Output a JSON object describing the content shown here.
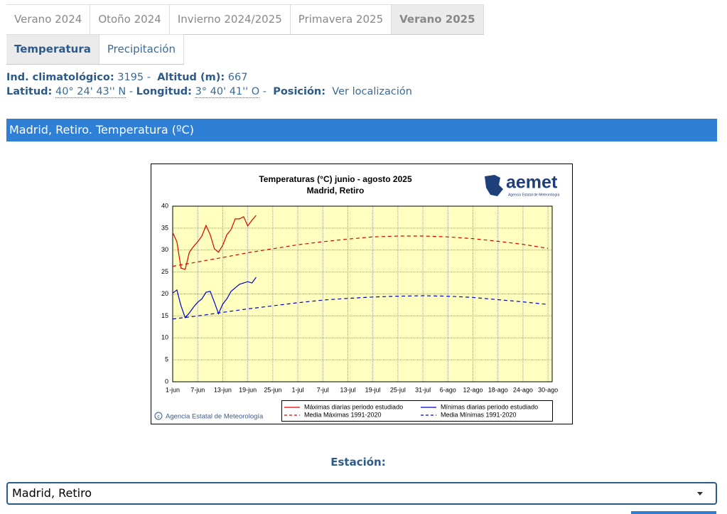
{
  "tabs": {
    "seasons": [
      "Verano 2024",
      "Otoño 2024",
      "Invierno 2024/2025",
      "Primavera 2025",
      "Verano 2025"
    ],
    "variables": [
      "Temperatura",
      "Precipitación"
    ]
  },
  "info": {
    "separator": "-",
    "ind_label": "Ind. climatológico:",
    "ind_value": "3195",
    "alt_label": "Altitud (m):",
    "alt_value": "667",
    "lat_label": "Latitud:",
    "lat_value": "40° 24' 43'' N",
    "lon_label": "Longitud:",
    "lon_value": "3° 40' 41'' O",
    "pos_label": "Posición:",
    "pos_link": "Ver localización"
  },
  "section_title": "Madrid, Retiro. Temperatura (ºC)",
  "chart_data": {
    "type": "line",
    "title": "Temperaturas (°C) junio - agosto 2025",
    "subtitle": "Madrid, Retiro",
    "logo": "aemet",
    "logo_subtitle": "Agencia Estatal de Meteorología",
    "copyright": "Agencia Estatal de Meteorología",
    "grid": true,
    "background": "#ffffc0",
    "xlim": [
      "1-jun",
      "31-ago"
    ],
    "ylim": [
      0,
      40
    ],
    "yticks": [
      0,
      5,
      10,
      15,
      20,
      25,
      30,
      35,
      40
    ],
    "xticks": [
      "1-jun",
      "7-jun",
      "13-jun",
      "19-jun",
      "25-jun",
      "1-jul",
      "7-jul",
      "13-jul",
      "19-jul",
      "25-jul",
      "31-jul",
      "6-ago",
      "12-ago",
      "18-ago",
      "24-ago",
      "30-ago"
    ],
    "series": [
      {
        "name": "Máximas diarias periodo estudiado",
        "color": "#e00000",
        "dashed": false,
        "x": [
          "1-jun",
          "2-jun",
          "3-jun",
          "4-jun",
          "5-jun",
          "6-jun",
          "7-jun",
          "8-jun",
          "9-jun",
          "10-jun",
          "11-jun",
          "12-jun",
          "13-jun",
          "14-jun",
          "15-jun",
          "16-jun",
          "17-jun",
          "18-jun",
          "19-jun",
          "20-jun",
          "21-jun"
        ],
        "values": [
          34.0,
          31.9,
          25.9,
          25.6,
          29.5,
          30.8,
          31.9,
          33.2,
          35.6,
          33.5,
          30.3,
          29.5,
          31.1,
          33.5,
          34.7,
          37.1,
          37.1,
          37.6,
          35.5,
          36.8,
          37.9
        ]
      },
      {
        "name": "Mínimas diarias periodo estudiado",
        "color": "#0000d0",
        "dashed": false,
        "x": [
          "1-jun",
          "2-jun",
          "3-jun",
          "4-jun",
          "5-jun",
          "6-jun",
          "7-jun",
          "8-jun",
          "9-jun",
          "10-jun",
          "11-jun",
          "12-jun",
          "13-jun",
          "14-jun",
          "15-jun",
          "16-jun",
          "17-jun",
          "18-jun",
          "19-jun",
          "20-jun",
          "21-jun"
        ],
        "values": [
          20.2,
          20.9,
          17.3,
          14.6,
          15.7,
          17.0,
          18.1,
          18.9,
          20.4,
          20.6,
          18.1,
          15.5,
          17.7,
          18.9,
          20.6,
          21.4,
          22.2,
          22.5,
          22.8,
          22.5,
          23.8
        ]
      },
      {
        "name": "Media Máximas 1991-2020",
        "color": "#e00000",
        "dashed": true,
        "x": [
          "1-jun",
          "7-jun",
          "13-jun",
          "19-jun",
          "25-jun",
          "1-jul",
          "7-jul",
          "13-jul",
          "19-jul",
          "25-jul",
          "31-jul",
          "6-ago",
          "12-ago",
          "18-ago",
          "24-ago",
          "30-ago"
        ],
        "values": [
          26.3,
          27.3,
          28.3,
          29.4,
          30.3,
          31.2,
          31.9,
          32.5,
          33.0,
          33.2,
          33.2,
          33.0,
          32.6,
          32.0,
          31.3,
          30.4
        ]
      },
      {
        "name": "Media Mínimas 1991-2020",
        "color": "#0000d0",
        "dashed": true,
        "x": [
          "1-jun",
          "7-jun",
          "13-jun",
          "19-jun",
          "25-jun",
          "1-jul",
          "7-jul",
          "13-jul",
          "19-jul",
          "25-jul",
          "31-jul",
          "6-ago",
          "12-ago",
          "18-ago",
          "24-ago",
          "30-ago"
        ],
        "values": [
          14.3,
          15.0,
          15.8,
          16.6,
          17.3,
          18.0,
          18.6,
          19.0,
          19.3,
          19.5,
          19.6,
          19.5,
          19.2,
          18.7,
          18.2,
          17.6
        ]
      }
    ]
  },
  "station": {
    "label": "Estación:",
    "selected": "Madrid, Retiro"
  }
}
